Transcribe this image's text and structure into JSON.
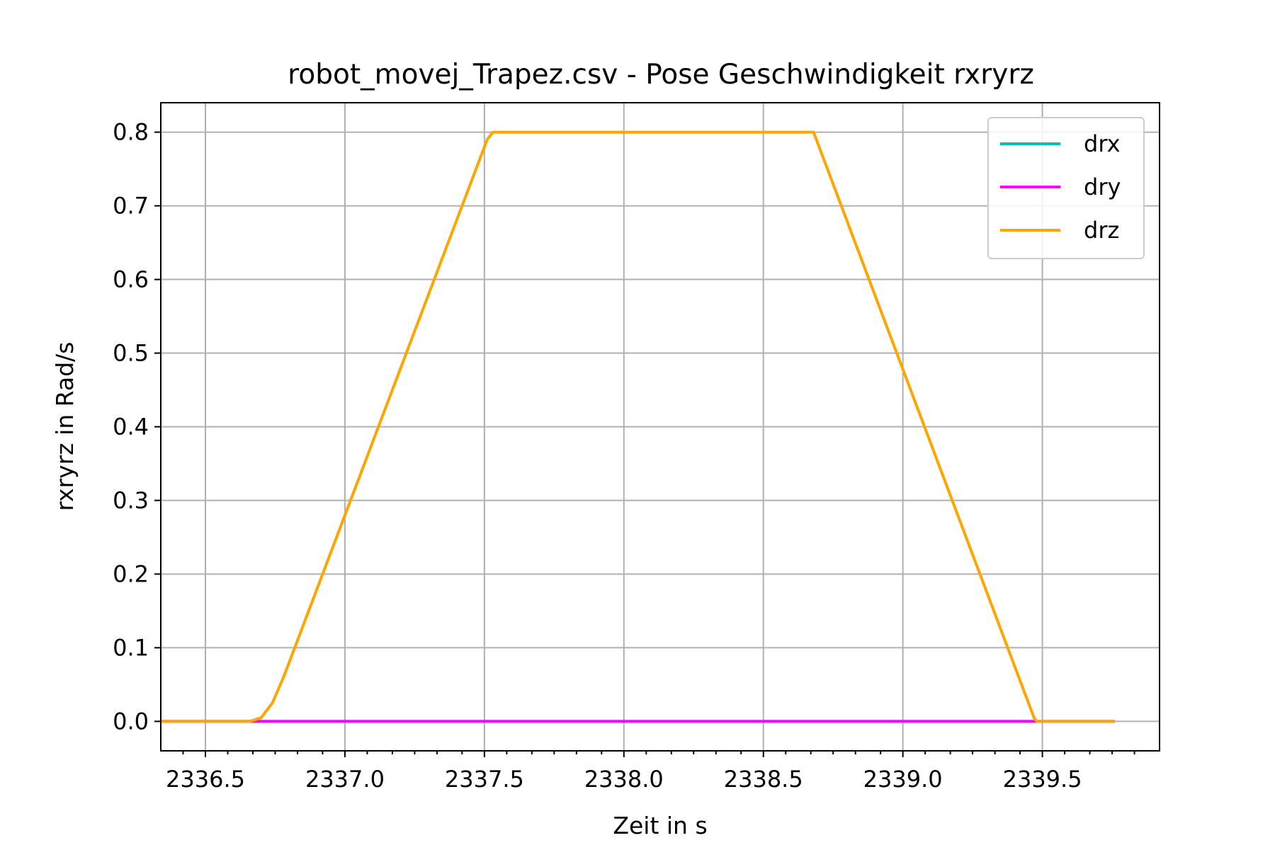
{
  "chart_data": {
    "type": "line",
    "title": "robot_movej_Trapez.csv - Pose Geschwindigkeit rxryrz",
    "xlabel": "Zeit in s",
    "ylabel": "rxryrz in Rad/s",
    "xlim": [
      2336.34,
      2339.92
    ],
    "ylim": [
      -0.04,
      0.84
    ],
    "xticks": [
      2336.5,
      2337.0,
      2337.5,
      2338.0,
      2338.5,
      2339.0,
      2339.5
    ],
    "xtick_labels": [
      "2336.5",
      "2337.0",
      "2337.5",
      "2338.0",
      "2338.5",
      "2339.0",
      "2339.5"
    ],
    "xminor_ticks": [
      2336.42,
      2336.58,
      2336.67,
      2336.75,
      2336.83,
      2336.92,
      2337.08,
      2337.17,
      2337.25,
      2337.33,
      2337.42,
      2337.58,
      2337.67,
      2337.75,
      2337.83,
      2337.92,
      2338.08,
      2338.17,
      2338.25,
      2338.33,
      2338.42,
      2338.58,
      2338.67,
      2338.75,
      2338.83,
      2338.92,
      2339.08,
      2339.17,
      2339.25,
      2339.33,
      2339.42,
      2339.58,
      2339.67,
      2339.75,
      2339.83
    ],
    "yticks": [
      0.0,
      0.1,
      0.2,
      0.3,
      0.4,
      0.5,
      0.6,
      0.7,
      0.8
    ],
    "ytick_labels": [
      "0.0",
      "0.1",
      "0.2",
      "0.3",
      "0.4",
      "0.5",
      "0.6",
      "0.7",
      "0.8"
    ],
    "grid": true,
    "legend_position": "top-right",
    "series": [
      {
        "name": "drx",
        "color": "#00bfbf",
        "x": [
          2336.34,
          2339.76
        ],
        "y": [
          0.0,
          0.0
        ]
      },
      {
        "name": "dry",
        "color": "#ff00ff",
        "x": [
          2336.34,
          2339.76
        ],
        "y": [
          0.0,
          0.0
        ]
      },
      {
        "name": "drz",
        "color": "#ffa500",
        "x": [
          2336.34,
          2336.66,
          2336.7,
          2336.74,
          2336.78,
          2336.8,
          2337.51,
          2337.53,
          2338.67,
          2338.68,
          2339.47,
          2339.48,
          2339.76
        ],
        "y": [
          0.0,
          0.0,
          0.005,
          0.025,
          0.06,
          0.08,
          0.79,
          0.8,
          0.8,
          0.8,
          0.005,
          0.0,
          0.0
        ]
      }
    ]
  }
}
